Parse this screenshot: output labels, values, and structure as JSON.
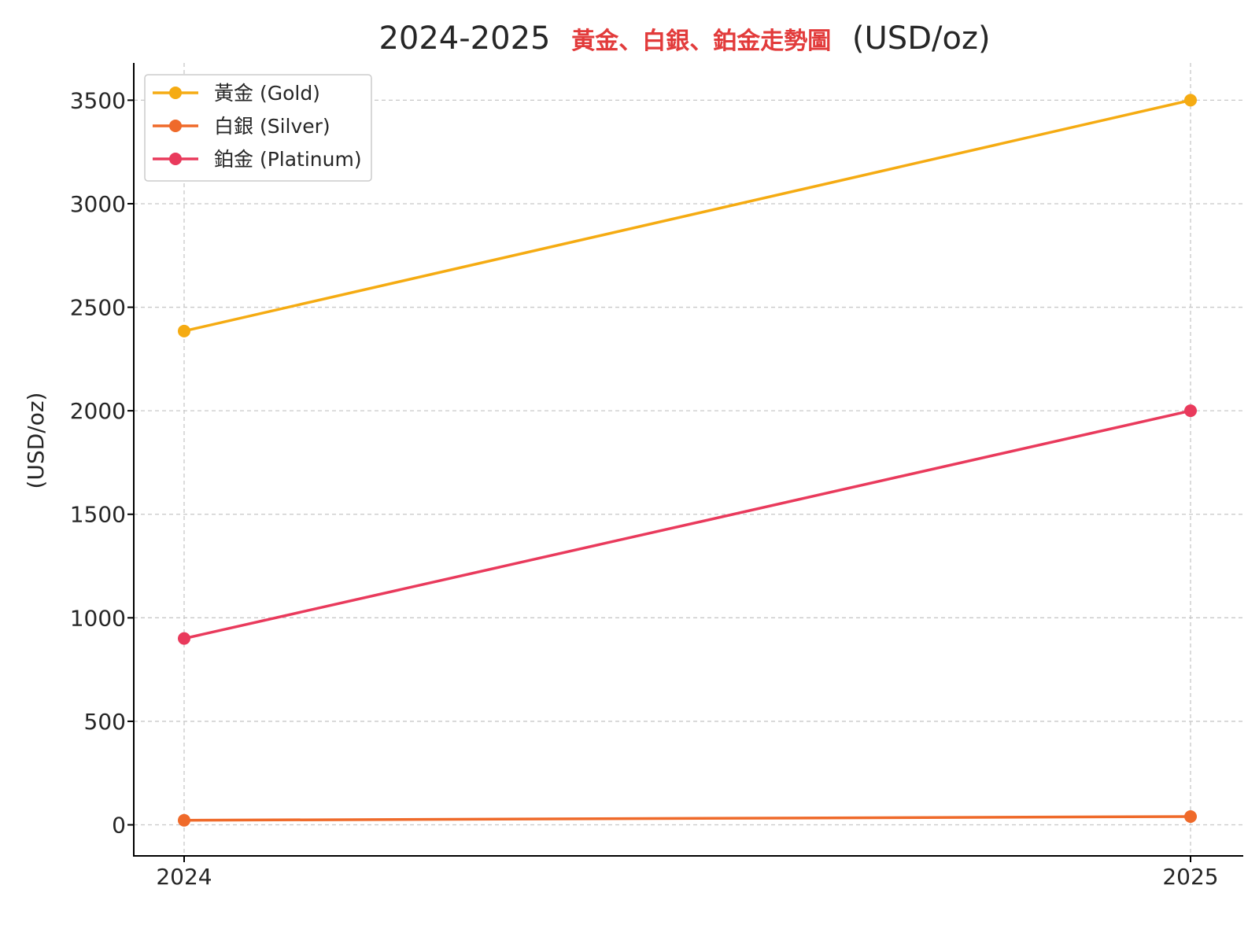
{
  "chart_data": {
    "type": "line",
    "title": {
      "prefix": "2024-2025",
      "middle": "黃金、白銀、鉑金走勢圖",
      "suffix": "(USD/oz)"
    },
    "ylabel": "(USD/oz)",
    "xlabel": "",
    "x": [
      "2024",
      "2025"
    ],
    "yticks": [
      0,
      500,
      1000,
      1500,
      2000,
      2500,
      3000,
      3500
    ],
    "ylim": [
      -150,
      3680
    ],
    "grid": true,
    "legend_position": "top-left",
    "series": [
      {
        "name": "黃金 (Gold)",
        "color": "#f5ab12",
        "values": [
          2385,
          3500
        ]
      },
      {
        "name": "白銀 (Silver)",
        "color": "#ef6a2a",
        "values": [
          22,
          40
        ]
      },
      {
        "name": "鉑金 (Platinum)",
        "color": "#e93a5c",
        "values": [
          900,
          2000
        ]
      }
    ]
  }
}
